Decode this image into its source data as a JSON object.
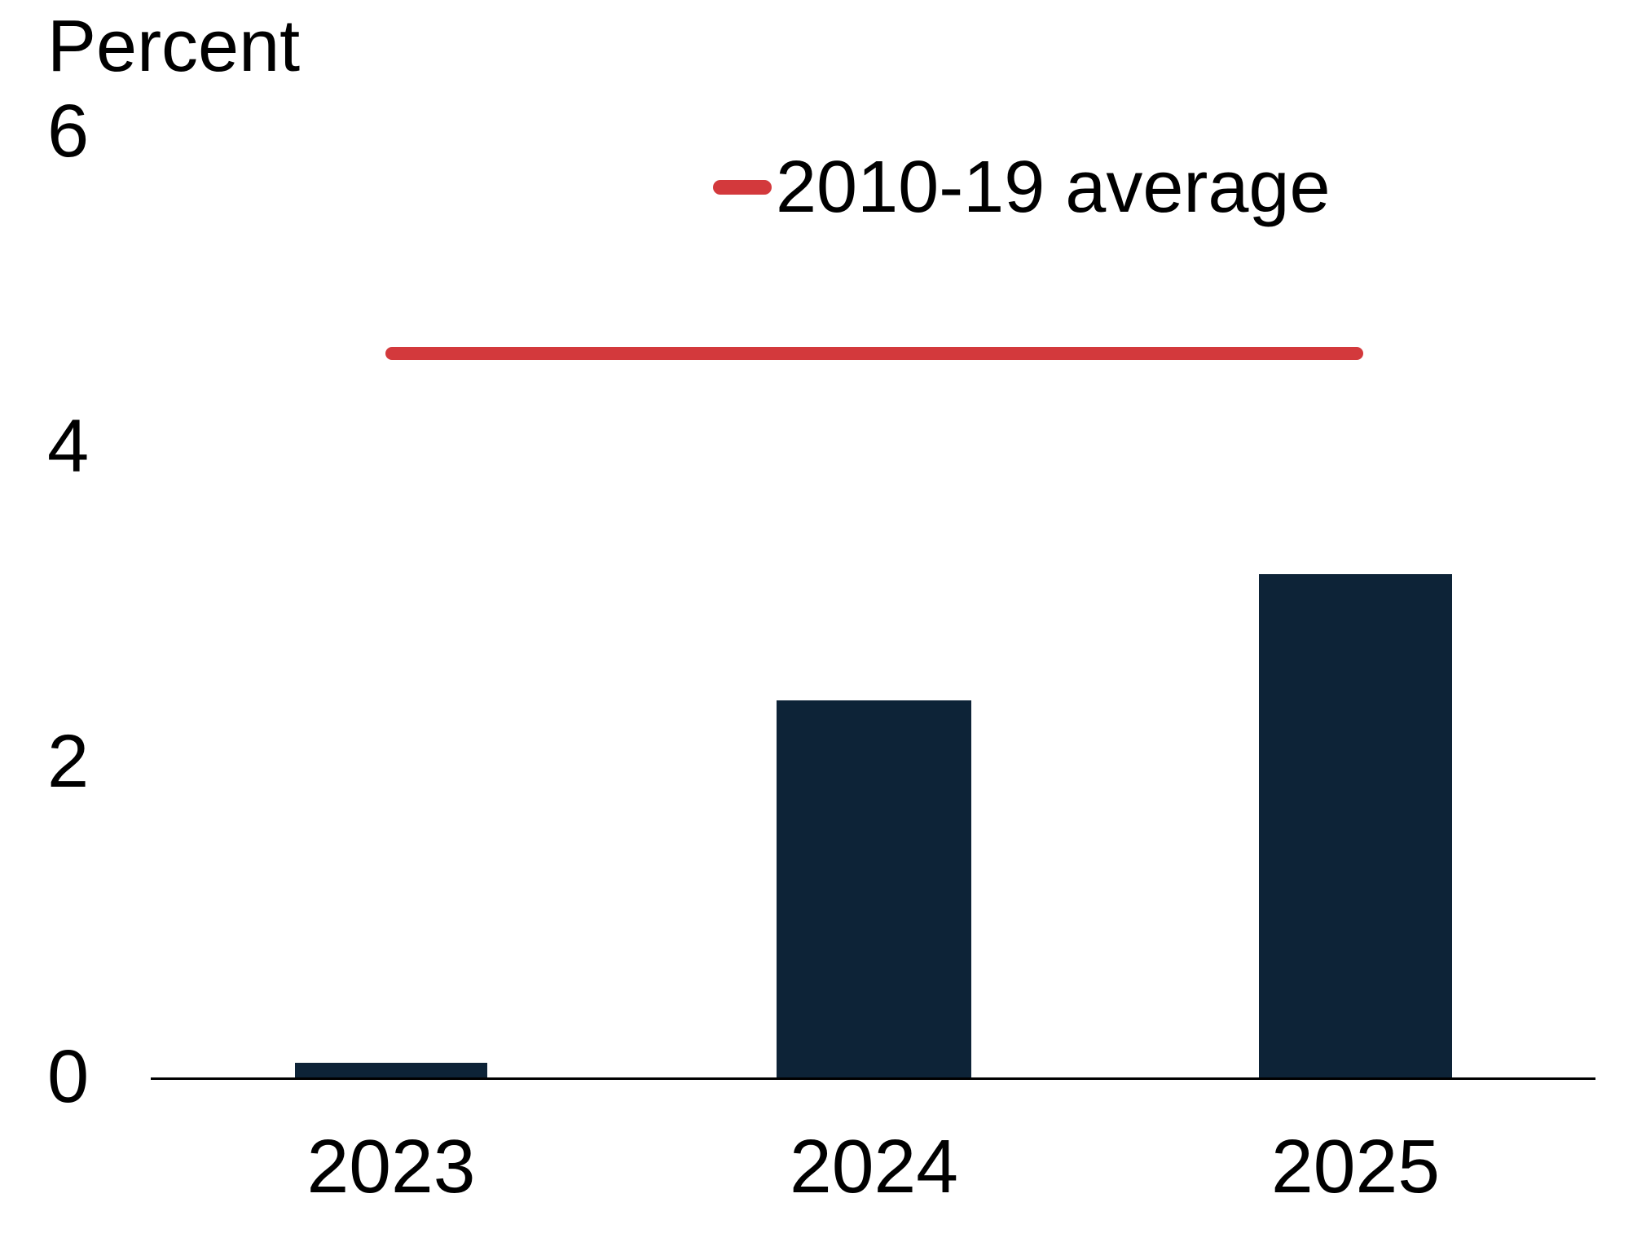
{
  "page": {
    "background": "#ffffff",
    "text_color": "#000000"
  },
  "chart_data": {
    "type": "bar",
    "title": "",
    "ylabel": "Percent",
    "xlabel": "",
    "categories": [
      "2023",
      "2024",
      "2025"
    ],
    "values": [
      0.1,
      2.4,
      3.2
    ],
    "bar_color": "#0d2337",
    "yticks": [
      0,
      2,
      4,
      6
    ],
    "ytick_labels": [
      "0",
      "2",
      "4",
      "6"
    ],
    "ylim": [
      0,
      6
    ],
    "grid": false,
    "legend_position": "top-center",
    "average_line": {
      "label": "2010-19 average",
      "value": 4.6,
      "color": "#d3393c"
    }
  }
}
